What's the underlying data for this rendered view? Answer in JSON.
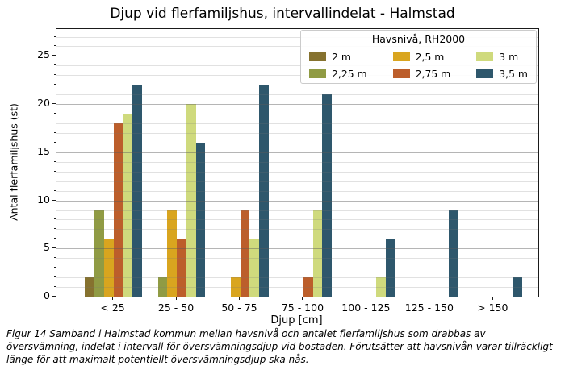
{
  "figure": {
    "caption": "Figur 14 Samband i Halmstad kommun mellan havsnivå och antalet flerfamiljshus som drabbas av översvämning, indelat i intervall för översvämningsdjup vid bostaden. Förutsätter att havsnivån varar tillräckligt länge för att maximalt potentiellt översvämningsdjup ska nås."
  },
  "chart_data": {
    "type": "bar",
    "title": "Djup vid flerfamiljshus, intervallindelat - Halmstad",
    "xlabel": "Djup [cm]",
    "ylabel": "Antal flerfamiljshus (st)",
    "categories": [
      "< 25",
      "25 - 50",
      "50 - 75",
      "75 - 100",
      "100 - 125",
      "125 - 150",
      "> 150"
    ],
    "series": [
      {
        "name": "2 m",
        "color": "#86722f",
        "values": [
          2,
          0,
          0,
          0,
          0,
          0,
          0
        ]
      },
      {
        "name": "2,25 m",
        "color": "#909b44",
        "values": [
          9,
          2,
          0,
          0,
          0,
          0,
          0
        ]
      },
      {
        "name": "2,5 m",
        "color": "#d9a51f",
        "values": [
          6,
          9,
          2,
          0,
          0,
          0,
          0
        ]
      },
      {
        "name": "2,75 m",
        "color": "#bc5e2b",
        "values": [
          18,
          6,
          9,
          2,
          0,
          0,
          0
        ]
      },
      {
        "name": "3 m",
        "color": "#cfda7d",
        "values": [
          19,
          20,
          6,
          9,
          2,
          0,
          0
        ]
      },
      {
        "name": "3,5 m",
        "color": "#2e576c",
        "values": [
          22,
          16,
          22,
          21,
          6,
          9,
          2
        ]
      }
    ],
    "legend": {
      "title": "Havsnivå, RH2000",
      "position": "upper right",
      "columns": 3
    },
    "ylim": [
      0,
      27.8
    ],
    "xlim": [
      -0.9,
      6.71
    ],
    "yticks": [
      0,
      5,
      10,
      15,
      20,
      25
    ],
    "minor_grid_step": 1,
    "major_grid_step": 5,
    "grid": true,
    "bar_group_width": 0.9
  }
}
